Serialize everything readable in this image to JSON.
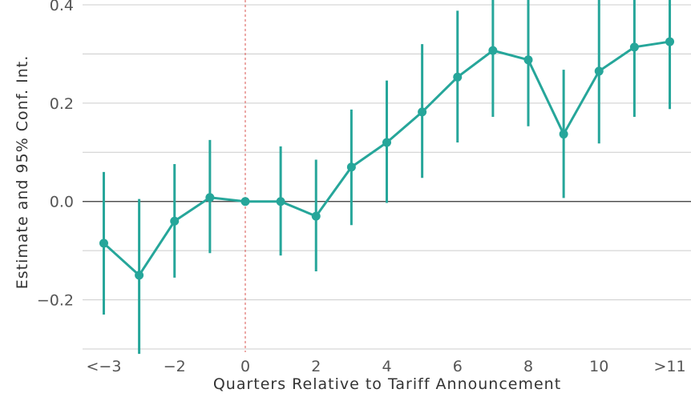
{
  "chart_data": {
    "type": "line",
    "title": "",
    "xlabel": "Quarters Relative to Tariff Announcement",
    "ylabel": "Estimate and 95% Conf. Int.",
    "x": [
      -4,
      -3,
      -2,
      -1,
      0,
      1,
      2,
      3,
      4,
      5,
      6,
      7,
      8,
      9,
      10,
      11,
      12
    ],
    "x_tick_values": [
      -4,
      -2,
      0,
      2,
      4,
      6,
      8,
      10,
      12
    ],
    "x_tick_labels": [
      "<−3",
      "−2",
      "0",
      "2",
      "4",
      "6",
      "8",
      "10",
      ">11"
    ],
    "y_tick_values": [
      -0.2,
      0.0,
      0.2,
      0.4
    ],
    "y_tick_labels": [
      "−0.2",
      "0.0",
      "0.2",
      "0.4"
    ],
    "xlim": [
      -4.6,
      12.6
    ],
    "ylim": [
      -0.3,
      0.4
    ],
    "grid": true,
    "series": [
      {
        "values": [
          -0.085,
          -0.15,
          -0.04,
          0.008,
          0.0,
          0.0,
          -0.03,
          0.07,
          0.12,
          0.182,
          0.253,
          0.307,
          0.288,
          0.137,
          0.265,
          0.314,
          0.325
        ],
        "ci_low": [
          -0.23,
          -0.31,
          -0.155,
          -0.105,
          0.0,
          -0.11,
          -0.142,
          -0.048,
          -0.003,
          0.048,
          0.12,
          0.172,
          0.153,
          0.007,
          0.118,
          0.172,
          0.188
        ],
        "ci_high": [
          0.06,
          0.005,
          0.076,
          0.125,
          0.0,
          0.112,
          0.085,
          0.187,
          0.246,
          0.32,
          0.388,
          0.443,
          0.423,
          0.268,
          0.412,
          0.458,
          0.463
        ]
      }
    ],
    "reference_lines": {
      "y": 0.0,
      "x": 0
    },
    "colors": {
      "series": "#26a69a",
      "zero_line": "#333333",
      "vline": "#d9534f",
      "grid": "#cccccc"
    }
  }
}
